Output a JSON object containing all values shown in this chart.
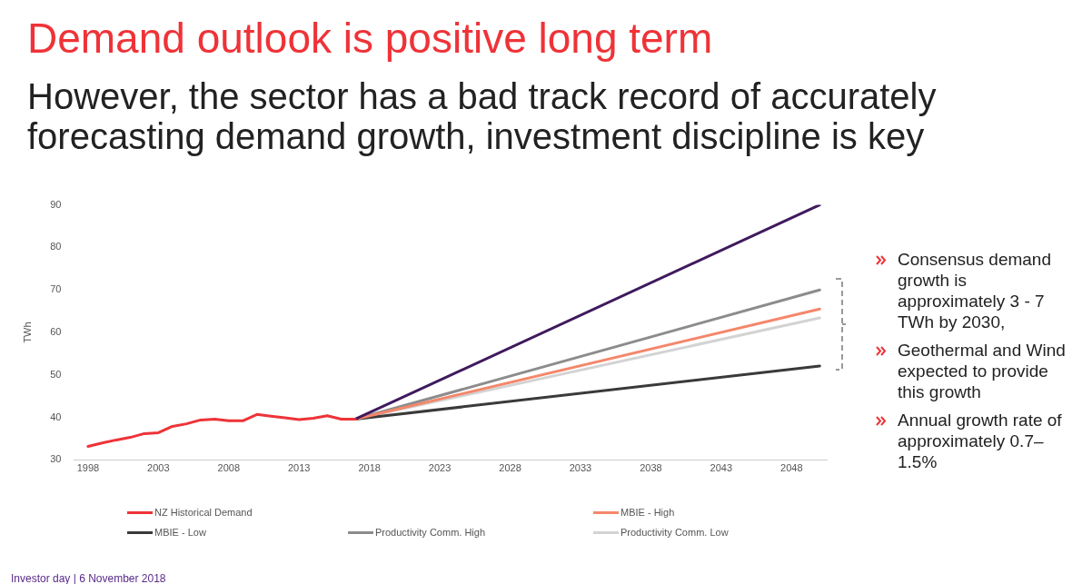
{
  "chart_data": {
    "type": "line",
    "title": "Demand outlook is positive long term",
    "subtitle": "However, the sector has a bad track record of accurately forecasting demand growth, investment discipline is key",
    "ylabel": "TWh",
    "xlim": [
      1997,
      2050.5
    ],
    "xticks": [
      1998,
      2003,
      2008,
      2013,
      2018,
      2023,
      2028,
      2033,
      2038,
      2043,
      2048
    ],
    "ylim": [
      30,
      90
    ],
    "yticks": [
      30,
      40,
      50,
      60,
      70,
      80,
      90
    ],
    "grid": false,
    "legend": "bottom",
    "marker": "none",
    "line_style": "solid",
    "series": [
      {
        "name": "NZ Historical Demand",
        "color": "#ee3338",
        "x": [
          1998,
          1999,
          2000,
          2001,
          2002,
          2003,
          2004,
          2005,
          2006,
          2007,
          2008,
          2009,
          2010,
          2011,
          2012,
          2013,
          2014,
          2015,
          2016,
          2017
        ],
        "values": [
          33.2,
          34,
          34.7,
          35.3,
          36.2,
          36.4,
          37.9,
          38.5,
          39.4,
          39.6,
          39.2,
          39.2,
          40.7,
          40.3,
          39.9,
          39.5,
          39.8,
          40.4,
          39.6,
          39.6
        ]
      },
      {
        "color": "#3f1a5e",
        "x": [
          2017,
          2050
        ],
        "values": [
          39.6,
          90
        ]
      },
      {
        "name": "MBIE - High",
        "color": "#f4876b",
        "x": [
          2017,
          2050
        ],
        "values": [
          39.6,
          65.5
        ]
      },
      {
        "name": "MBIE - Low",
        "color": "#3a3a3a",
        "x": [
          2017,
          2050
        ],
        "values": [
          39.6,
          52.1
        ]
      },
      {
        "name": "Productivity Comm. High",
        "color": "#8c8c8c",
        "x": [
          2017,
          2050
        ],
        "values": [
          39.6,
          70
        ]
      },
      {
        "name": "Productivity Comm. Low",
        "color": "#d3d3d3",
        "x": [
          2017,
          2050
        ],
        "values": [
          39.6,
          63.4
        ]
      }
    ],
    "annotations": [
      "Consensus demand growth is approximately 3 - 7 TWh by 2030,",
      "Geothermal and Wind expected to provide this growth",
      "Annual growth rate of approximately 0.7– 1.5%",
      "Investor day | 6 November 2018"
    ]
  }
}
